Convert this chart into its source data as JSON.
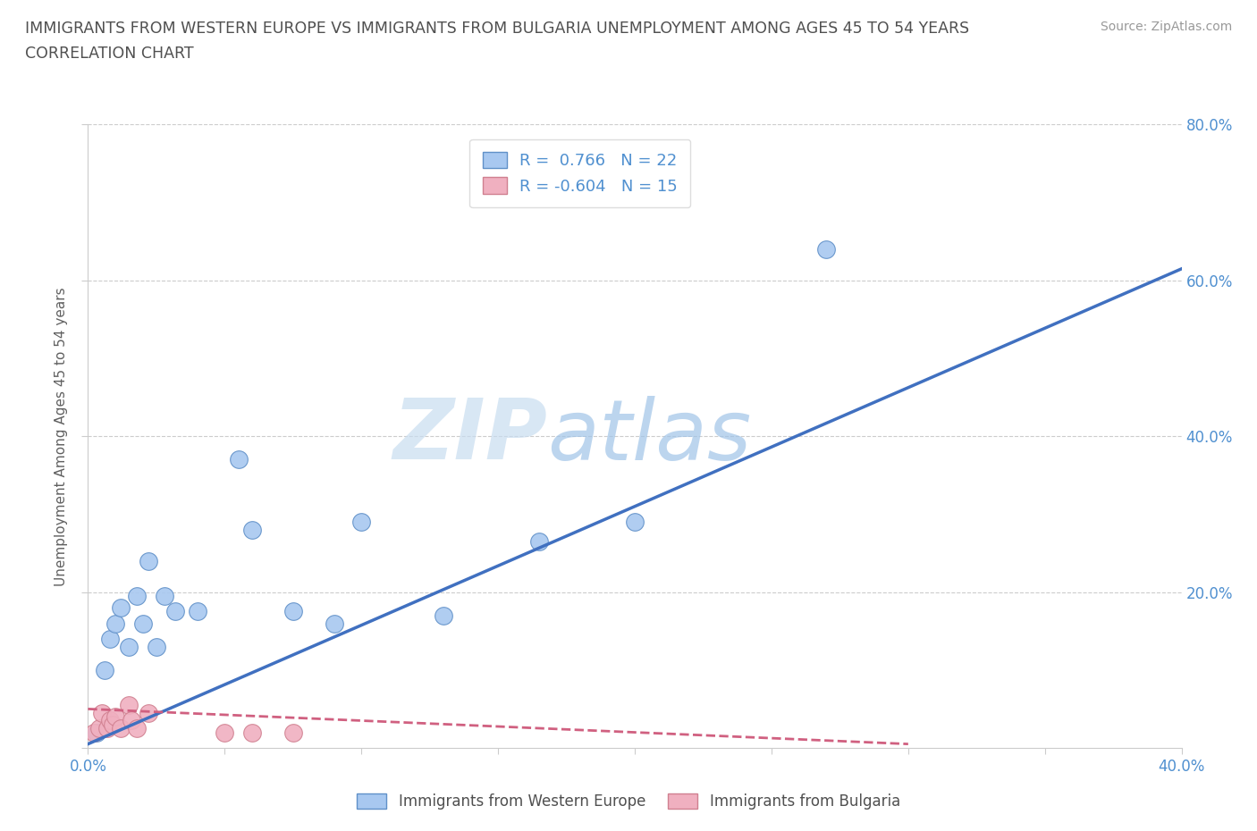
{
  "title_line1": "IMMIGRANTS FROM WESTERN EUROPE VS IMMIGRANTS FROM BULGARIA UNEMPLOYMENT AMONG AGES 45 TO 54 YEARS",
  "title_line2": "CORRELATION CHART",
  "source": "Source: ZipAtlas.com",
  "ylabel": "Unemployment Among Ages 45 to 54 years",
  "watermark_zip": "ZIP",
  "watermark_atlas": "atlas",
  "xlim": [
    0.0,
    0.4
  ],
  "ylim": [
    0.0,
    0.8
  ],
  "xticks": [
    0.0,
    0.05,
    0.1,
    0.15,
    0.2,
    0.25,
    0.3,
    0.35,
    0.4
  ],
  "ytick_vals": [
    0.0,
    0.2,
    0.4,
    0.6,
    0.8
  ],
  "ytick_labels": [
    "",
    "20.0%",
    "40.0%",
    "60.0%",
    "80.0%"
  ],
  "xtick_labels": [
    "0.0%",
    "",
    "",
    "",
    "",
    "",
    "",
    "",
    "40.0%"
  ],
  "blue_R": "0.766",
  "blue_N": "22",
  "pink_R": "-0.604",
  "pink_N": "15",
  "blue_fill": "#a8c8f0",
  "blue_edge": "#6090c8",
  "blue_line_color": "#4070c0",
  "pink_fill": "#f0b0c0",
  "pink_edge": "#d08090",
  "pink_line_color": "#d06080",
  "grid_color": "#cccccc",
  "background_color": "#ffffff",
  "blue_scatter_x": [
    0.003,
    0.006,
    0.008,
    0.01,
    0.012,
    0.015,
    0.018,
    0.02,
    0.022,
    0.025,
    0.028,
    0.032,
    0.04,
    0.055,
    0.06,
    0.075,
    0.09,
    0.1,
    0.13,
    0.165,
    0.2,
    0.27
  ],
  "blue_scatter_y": [
    0.02,
    0.1,
    0.14,
    0.16,
    0.18,
    0.13,
    0.195,
    0.16,
    0.24,
    0.13,
    0.195,
    0.175,
    0.175,
    0.37,
    0.28,
    0.175,
    0.16,
    0.29,
    0.17,
    0.265,
    0.29,
    0.64
  ],
  "pink_scatter_x": [
    0.002,
    0.004,
    0.005,
    0.007,
    0.008,
    0.009,
    0.01,
    0.012,
    0.015,
    0.016,
    0.018,
    0.022,
    0.05,
    0.06,
    0.075
  ],
  "pink_scatter_y": [
    0.02,
    0.025,
    0.045,
    0.025,
    0.035,
    0.03,
    0.04,
    0.025,
    0.055,
    0.035,
    0.025,
    0.045,
    0.02,
    0.02,
    0.02
  ],
  "blue_line_x": [
    0.0,
    0.4
  ],
  "blue_line_y": [
    0.005,
    0.615
  ],
  "pink_line_x": [
    0.0,
    0.3
  ],
  "pink_line_y": [
    0.05,
    0.005
  ],
  "legend_label_blue": "Immigrants from Western Europe",
  "legend_label_pink": "Immigrants from Bulgaria",
  "title_color": "#505050",
  "axis_label_color": "#606060",
  "tick_color": "#5090d0",
  "watermark_color_zip": "#c8ddf0",
  "watermark_color_atlas": "#a0c4e8"
}
